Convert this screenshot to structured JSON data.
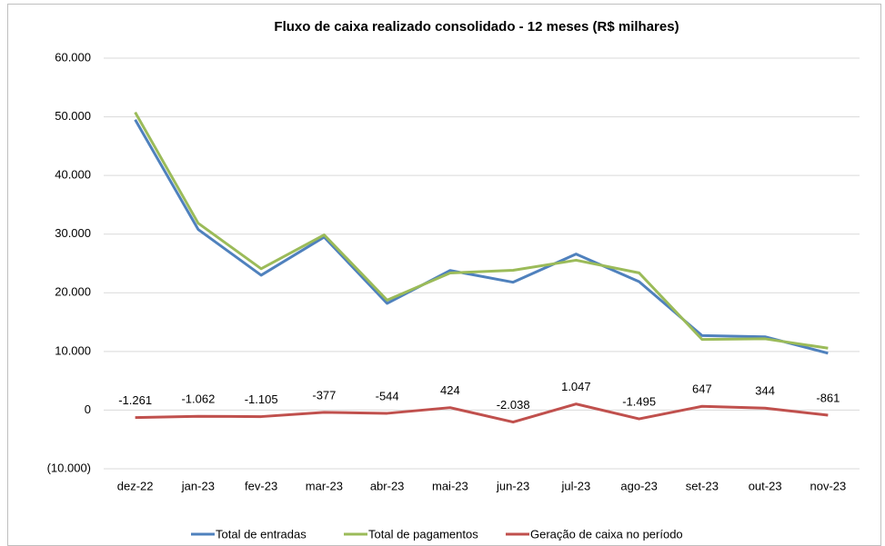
{
  "chart_data": {
    "type": "line",
    "title": "Fluxo de caixa realizado consolidado  -  12 meses (R$ milhares)",
    "categories": [
      "dez-22",
      "jan-23",
      "fev-23",
      "mar-23",
      "abr-23",
      "mai-23",
      "jun-23",
      "jul-23",
      "ago-23",
      "set-23",
      "out-23",
      "nov-23"
    ],
    "series": [
      {
        "name": "Total de entradas",
        "color": "#4f81bd",
        "values": [
          49500,
          30800,
          23000,
          29500,
          18200,
          23800,
          21800,
          26600,
          21900,
          12700,
          12500,
          9700
        ]
      },
      {
        "name": "Total de pagamentos",
        "color": "#9bbb59",
        "values": [
          50761,
          31862,
          24105,
          29877,
          18744,
          23376,
          23838,
          25553,
          23395,
          12053,
          12156,
          10561
        ]
      },
      {
        "name": "Geração de caixa no período",
        "color": "#c0504d",
        "values": [
          -1261,
          -1062,
          -1105,
          -377,
          -544,
          424,
          -2038,
          1047,
          -1495,
          647,
          344,
          -861
        ],
        "value_labels": [
          "-1.261",
          "-1.062",
          "-1.105",
          "-377",
          "-544",
          "424",
          "-2.038",
          "1.047",
          "-1.495",
          "647",
          "344",
          "-861"
        ]
      }
    ],
    "ylim": [
      -10000,
      60000
    ],
    "yticks": [
      {
        "value": -10000,
        "label": "(10.000)"
      },
      0,
      {
        "value": 10000,
        "label": "10.000"
      },
      {
        "value": 20000,
        "label": "20.000"
      },
      {
        "value": 30000,
        "label": "30.000"
      },
      {
        "value": 40000,
        "label": "40.000"
      },
      {
        "value": 50000,
        "label": "50.000"
      },
      {
        "value": 60000,
        "label": "60.000"
      }
    ],
    "grid": true,
    "legend": "bottom"
  }
}
